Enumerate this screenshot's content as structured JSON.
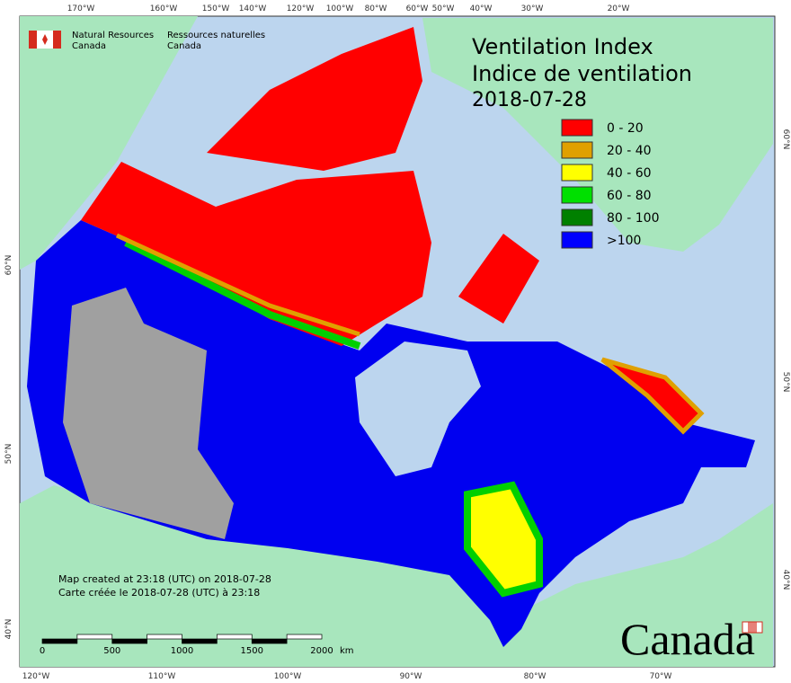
{
  "header": {
    "logo_en": [
      "Natural Resources",
      "Canada"
    ],
    "logo_fr": [
      "Ressources naturelles",
      "Canada"
    ]
  },
  "title": [
    "Ventilation Index",
    "Indice de ventilation",
    "2018-07-28"
  ],
  "legend": [
    {
      "label": "0 - 20",
      "color": "#ff0000"
    },
    {
      "label": "20 - 40",
      "color": "#e0a000"
    },
    {
      "label": "40 - 60",
      "color": "#ffff00"
    },
    {
      "label": "60 - 80",
      "color": "#00e000"
    },
    {
      "label": "80 - 100",
      "color": "#008000"
    },
    {
      "label": ">100",
      "color": "#0000ff"
    }
  ],
  "graticule": {
    "top": [
      "170°W",
      "160°W",
      "150°W",
      "140°W",
      "120°W",
      "100°W",
      "80°W",
      "60°W",
      "50°W",
      "40°W",
      "30°W",
      "20°W"
    ],
    "bottom": [
      "120°W",
      "110°W",
      "100°W",
      "90°W",
      "80°W",
      "70°W"
    ],
    "left": [
      "60°N",
      "50°N",
      "40°N"
    ],
    "right": [
      "60°N",
      "50°N",
      "40°N"
    ]
  },
  "scale_bar": {
    "ticks": [
      0,
      500,
      1000,
      1500,
      2000
    ],
    "unit": "km"
  },
  "footer": [
    "Map created at 23:18 (UTC) on 2018-07-28",
    "Carte créée le 2018-07-28 (UTC) à 23:18"
  ],
  "wordmark": "Canada"
}
